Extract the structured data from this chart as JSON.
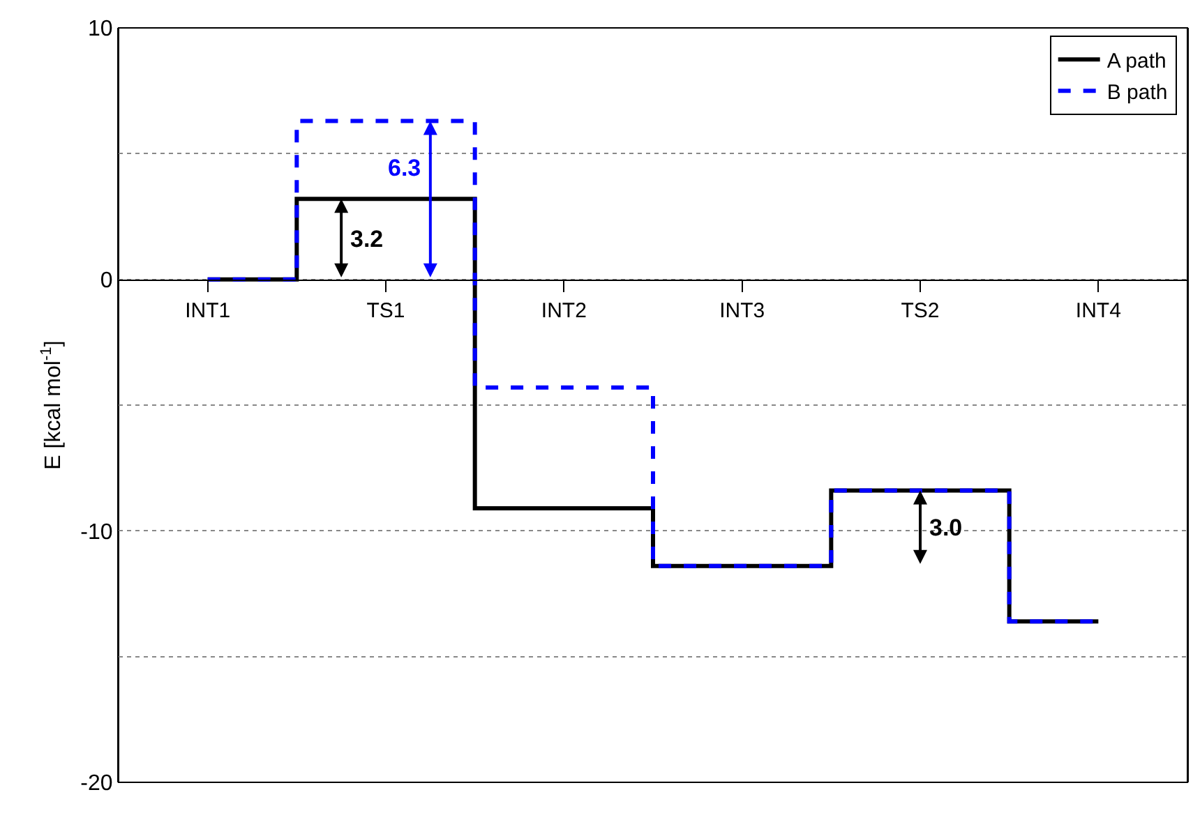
{
  "chart_data": {
    "type": "step",
    "ylabel": "E [kcal mol$^{-1}$]",
    "categories": [
      "INT1",
      "TS1",
      "INT2",
      "INT3",
      "TS2",
      "INT4"
    ],
    "series": [
      {
        "name": "A path",
        "color": "#000000",
        "line_style": "solid",
        "values": [
          0,
          3.2,
          -9.1,
          -11.4,
          -8.4,
          -13.6
        ]
      },
      {
        "name": "B path",
        "color": "#0000ff",
        "line_style": "dashed",
        "values": [
          0,
          6.3,
          -4.3,
          -11.4,
          -8.4,
          -13.6
        ]
      }
    ],
    "ylim": [
      -20,
      10
    ],
    "yticks": [
      -20,
      {
        "value": -15,
        "label": null
      },
      -10,
      {
        "value": -5,
        "label": null
      },
      0,
      {
        "value": 5,
        "label": null
      },
      10
    ],
    "grid": "y",
    "legend": "top right",
    "annotations": [
      {
        "text": "3.2",
        "x": "TS1",
        "y": 3.2
      },
      {
        "text": "6.3",
        "x": "TS1",
        "y": 6.3
      },
      {
        "text": "3.0",
        "x": "TS2",
        "y": -8.4
      }
    ]
  }
}
